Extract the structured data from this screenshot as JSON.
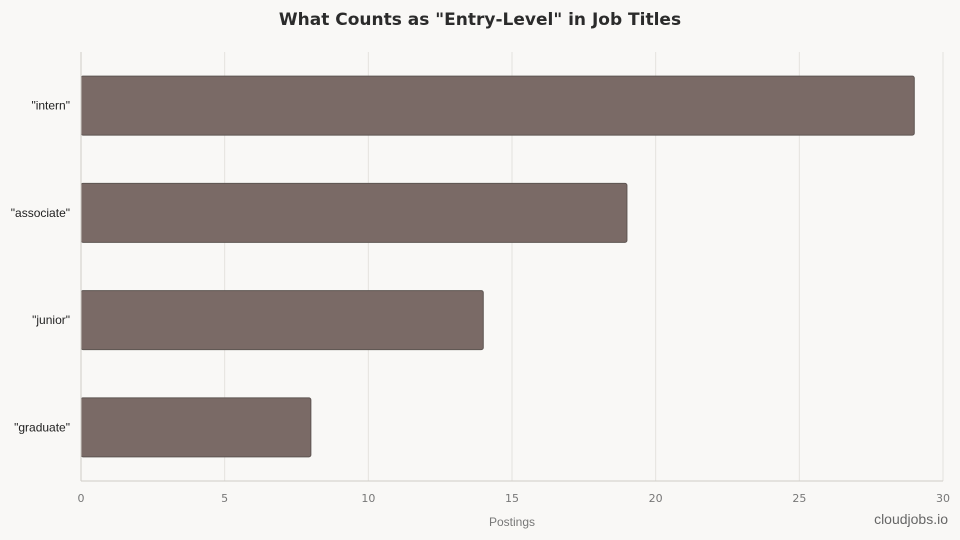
{
  "chart_data": {
    "type": "bar",
    "orientation": "horizontal",
    "title": "What Counts as \"Entry-Level\" in Job Titles",
    "xlabel": "Postings",
    "ylabel": "",
    "categories": [
      "\"intern\"",
      "\"associate\"",
      "\"junior\"",
      "\"graduate\""
    ],
    "values": [
      29,
      19,
      14,
      8
    ],
    "xlim": [
      0,
      30
    ],
    "xticks": [
      0,
      5,
      10,
      15,
      20,
      25,
      30
    ],
    "grid": true,
    "bar_color": "#7a6a66"
  },
  "watermark": "cloudjobs.io"
}
